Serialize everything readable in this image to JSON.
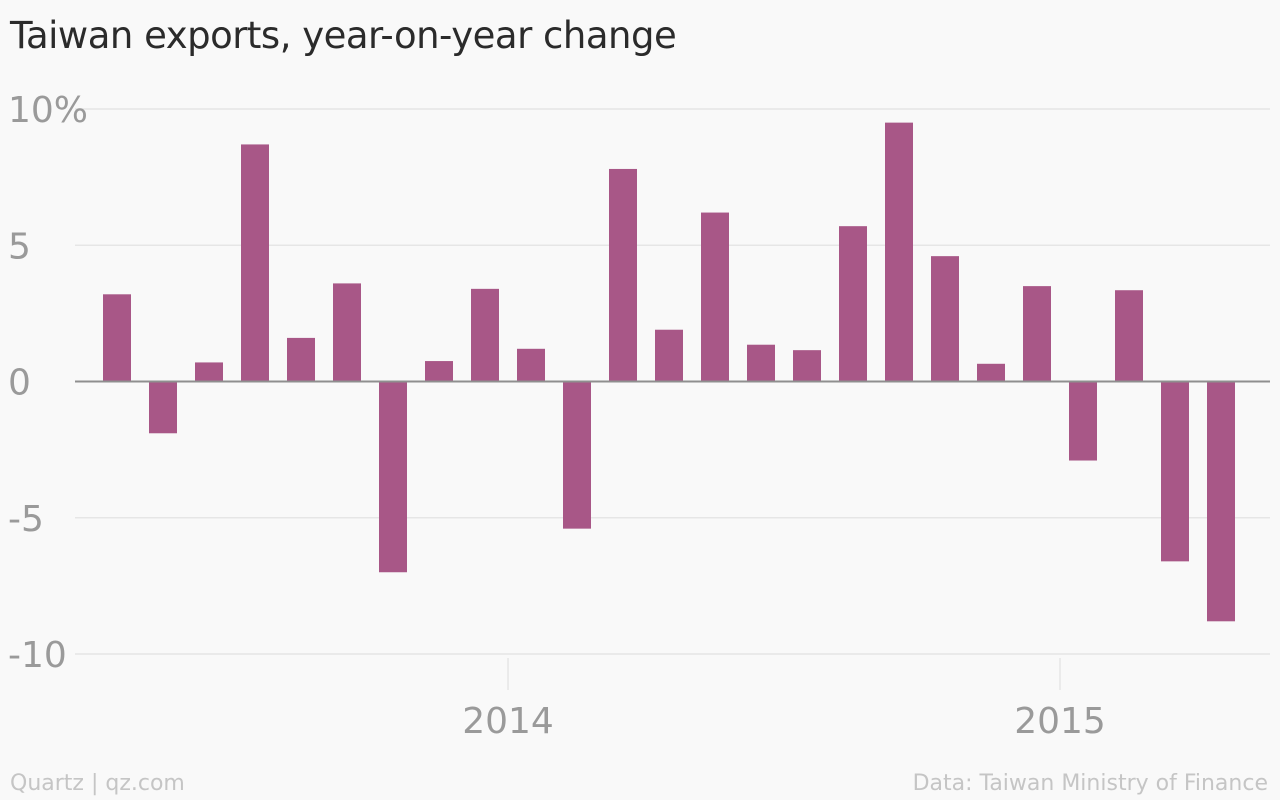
{
  "chart_data": {
    "type": "bar",
    "title": "Taiwan exports, year-on-year change",
    "xlabel": "",
    "ylabel": "",
    "ylim": [
      -10,
      10
    ],
    "yticks": [
      10,
      5,
      0,
      -5,
      -10
    ],
    "ytick_labels": [
      "10%",
      "5",
      "0",
      "-5",
      "-10"
    ],
    "xticks": [
      {
        "label": "2014",
        "date": "2014-01"
      },
      {
        "label": "2015",
        "date": "2015-01"
      }
    ],
    "categories": [
      "2013-04",
      "2013-05",
      "2013-06",
      "2013-07",
      "2013-08",
      "2013-09",
      "2013-10",
      "2013-11",
      "2013-12",
      "2014-01",
      "2014-02",
      "2014-03",
      "2014-04",
      "2014-05",
      "2014-06",
      "2014-07",
      "2014-08",
      "2014-09",
      "2014-10",
      "2014-11",
      "2014-12",
      "2015-01",
      "2015-02",
      "2015-03",
      "2015-04"
    ],
    "values": [
      3.2,
      -1.9,
      0.7,
      8.7,
      1.6,
      3.6,
      -7.0,
      0.75,
      3.4,
      1.2,
      -5.4,
      7.8,
      1.9,
      6.2,
      1.35,
      1.15,
      5.7,
      9.5,
      4.6,
      0.65,
      3.5,
      -2.9,
      3.35,
      -6.6,
      -8.8
    ],
    "bar_color": "#a85787",
    "grid": true
  },
  "footer": {
    "credit": "Quartz | qz.com",
    "source": "Data: Taiwan Ministry of Finance"
  }
}
